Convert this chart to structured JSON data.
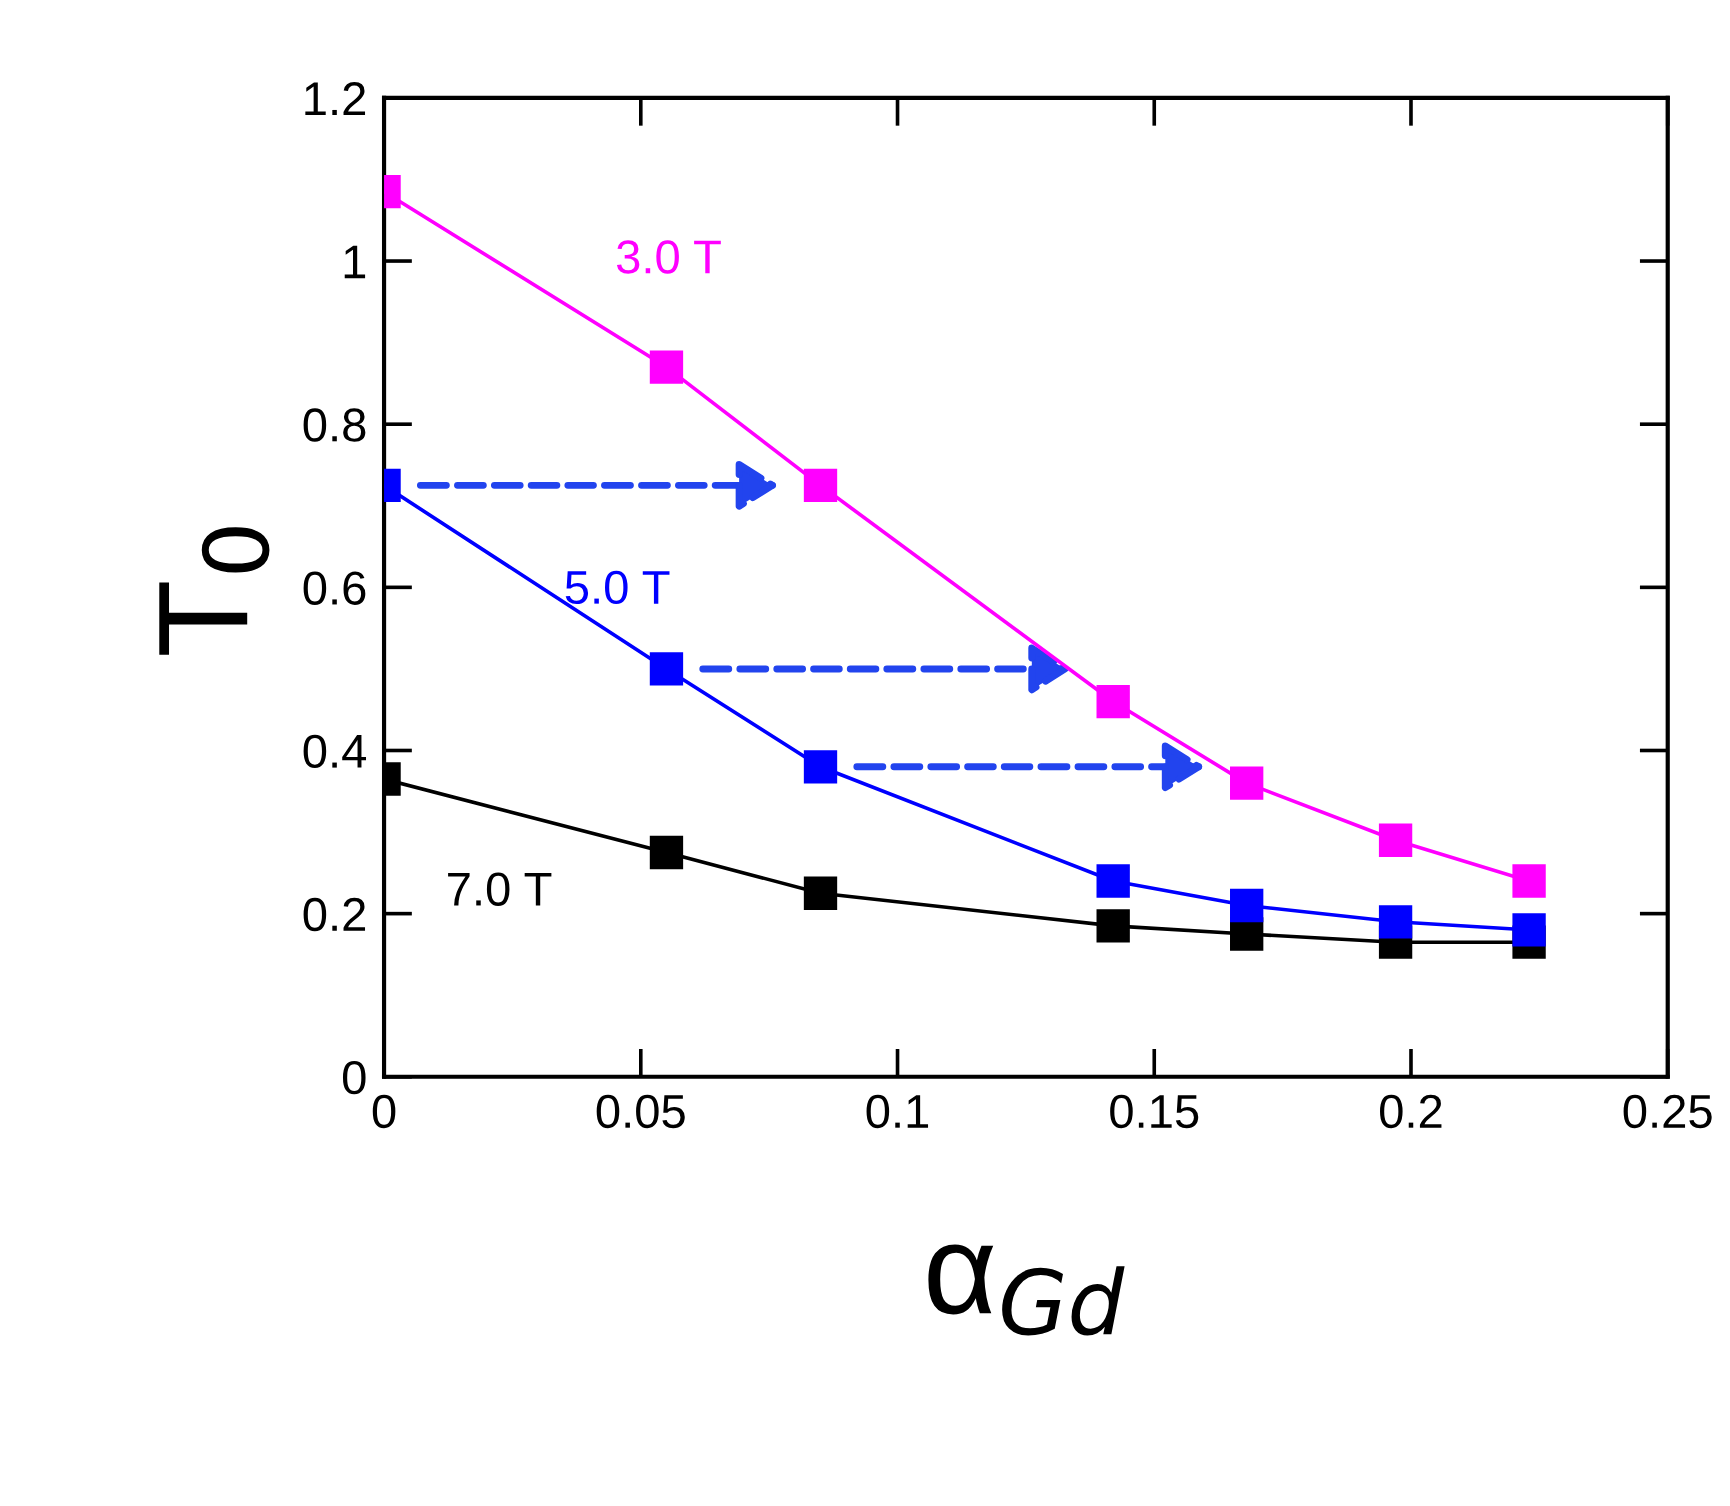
{
  "chart_data": {
    "type": "line",
    "xlabel": "α$_{Gd}$",
    "ylabel": "T$_{0}$",
    "x": [
      0,
      0.055,
      0.085,
      0.142,
      0.168,
      0.197,
      0.223
    ],
    "series": [
      {
        "name": "3.0 T",
        "color": "#ff00ff",
        "values": [
          1.085,
          0.87,
          0.725,
          0.46,
          0.36,
          0.29,
          0.24
        ]
      },
      {
        "name": "5.0 T",
        "color": "#0000ff",
        "values": [
          0.725,
          0.5,
          0.38,
          0.24,
          0.21,
          0.19,
          0.18
        ]
      },
      {
        "name": "7.0 T",
        "color": "#000000",
        "values": [
          0.365,
          0.275,
          0.225,
          0.185,
          0.175,
          0.165,
          0.165
        ]
      }
    ],
    "xlim": [
      0,
      0.25
    ],
    "ylim": [
      0,
      1.2
    ],
    "xticks": [
      0,
      0.05,
      0.1,
      0.15,
      0.2,
      0.25
    ],
    "yticks": [
      0,
      0.2,
      0.4,
      0.6,
      0.8,
      1,
      1.2
    ],
    "marker": "square",
    "line_style": "solid",
    "grid": false,
    "legend": false
  }
}
